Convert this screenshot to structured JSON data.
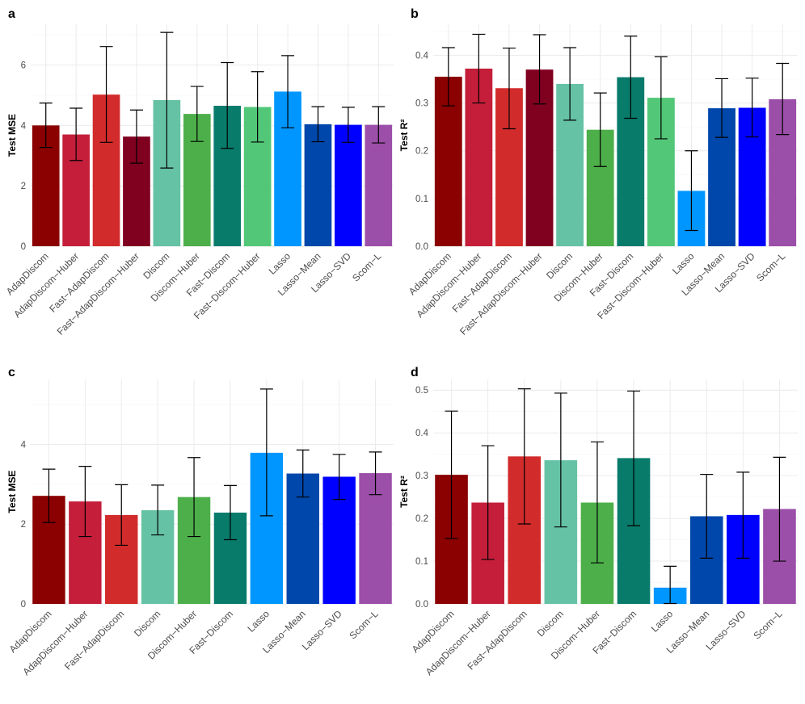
{
  "colors": {
    "AdapDiscom": "#8B0000",
    "AdapDiscom-Huber": "#C41E3A",
    "Fast-AdapDiscom": "#D22B2B",
    "Fast-AdapDiscom-Huber": "#800020",
    "Discom": "#66C2A5",
    "Discom-Huber": "#4DAF4A",
    "Fast-Discom": "#087B6B",
    "Fast-Discom-Huber": "#52C777",
    "Lasso": "#0096FF",
    "Lasso-Mean": "#0047AB",
    "Lasso-SVD": "#0000FF",
    "Scom-L": "#9B4FA8"
  },
  "chart_data": [
    {
      "panel": "a",
      "type": "bar",
      "ylabel": "Test MSE",
      "xlabel": "",
      "ylim": [
        0,
        7.35
      ],
      "yticks": [
        "0",
        "2",
        "4",
        "6"
      ],
      "categories": [
        "AdapDiscom",
        "AdapDiscom−Huber",
        "Fast−AdapDiscom",
        "Fast−AdapDiscom−Huber",
        "Discom",
        "Discom−Huber",
        "Fast−Discom",
        "Fast−Discom−Huber",
        "Lasso",
        "Lasso−Mean",
        "Lasso−SVD",
        "Scom−L"
      ],
      "values": [
        4.0,
        3.7,
        5.02,
        3.63,
        4.84,
        4.38,
        4.65,
        4.61,
        5.12,
        4.04,
        4.02,
        4.02
      ],
      "err_low": [
        3.27,
        2.84,
        3.44,
        2.75,
        2.59,
        3.47,
        3.24,
        3.45,
        3.92,
        3.46,
        3.44,
        3.42
      ],
      "err_high": [
        4.74,
        4.57,
        6.61,
        4.51,
        7.08,
        5.29,
        6.08,
        5.78,
        6.31,
        4.62,
        4.6,
        4.62
      ]
    },
    {
      "panel": "b",
      "type": "bar",
      "ylabel": "Test R²",
      "xlabel": "",
      "ylim": [
        0,
        0.465
      ],
      "yticks": [
        "0.0",
        "0.1",
        "0.2",
        "0.3",
        "0.4"
      ],
      "categories": [
        "AdapDiscom",
        "AdapDiscom−Huber",
        "Fast−AdapDiscom",
        "Fast−AdapDiscom−Huber",
        "Discom",
        "Discom−Huber",
        "Fast−Discom",
        "Fast−Discom−Huber",
        "Lasso",
        "Lasso−Mean",
        "Lasso−SVD",
        "Scom−L"
      ],
      "values": [
        0.355,
        0.372,
        0.331,
        0.37,
        0.34,
        0.244,
        0.354,
        0.311,
        0.116,
        0.289,
        0.29,
        0.308
      ],
      "err_low": [
        0.294,
        0.3,
        0.246,
        0.298,
        0.264,
        0.167,
        0.268,
        0.225,
        0.033,
        0.228,
        0.229,
        0.234
      ],
      "err_high": [
        0.416,
        0.444,
        0.415,
        0.443,
        0.416,
        0.321,
        0.44,
        0.397,
        0.2,
        0.351,
        0.352,
        0.383
      ]
    },
    {
      "panel": "c",
      "type": "bar",
      "ylabel": "Test MSE",
      "xlabel": "",
      "ylim": [
        0,
        5.63
      ],
      "yticks": [
        "0",
        "2",
        "4"
      ],
      "categories": [
        "AdapDiscom",
        "AdapDiscom−Huber",
        "Fast−AdapDiscom",
        "Discom",
        "Discom−Huber",
        "Fast−Discom",
        "Lasso",
        "Lasso−Mean",
        "Lasso−SVD",
        "Scom−L"
      ],
      "values": [
        2.71,
        2.57,
        2.23,
        2.35,
        2.68,
        2.29,
        3.79,
        3.27,
        3.19,
        3.28
      ],
      "err_low": [
        2.04,
        1.69,
        1.47,
        1.73,
        1.69,
        1.61,
        2.21,
        2.68,
        2.62,
        2.74
      ],
      "err_high": [
        3.38,
        3.45,
        2.99,
        2.98,
        3.67,
        2.97,
        5.39,
        3.86,
        3.75,
        3.81
      ]
    },
    {
      "panel": "d",
      "type": "bar",
      "ylabel": "Test R²",
      "xlabel": "",
      "ylim": [
        0,
        0.525
      ],
      "yticks": [
        "0.0",
        "0.1",
        "0.2",
        "0.3",
        "0.4",
        "0.5"
      ],
      "categories": [
        "AdapDiscom",
        "AdapDiscom−Huber",
        "Fast−AdapDiscom",
        "Discom",
        "Discom−Huber",
        "Fast−Discom",
        "Lasso",
        "Lasso−Mean",
        "Lasso−SVD",
        "Scom−L"
      ],
      "values": [
        0.302,
        0.237,
        0.345,
        0.336,
        0.237,
        0.341,
        0.038,
        0.205,
        0.208,
        0.222
      ],
      "err_low": [
        0.153,
        0.104,
        0.187,
        0.18,
        0.096,
        0.183,
        0.001,
        0.107,
        0.107,
        0.1
      ],
      "err_high": [
        0.451,
        0.37,
        0.503,
        0.493,
        0.379,
        0.498,
        0.088,
        0.303,
        0.308,
        0.343
      ]
    }
  ]
}
